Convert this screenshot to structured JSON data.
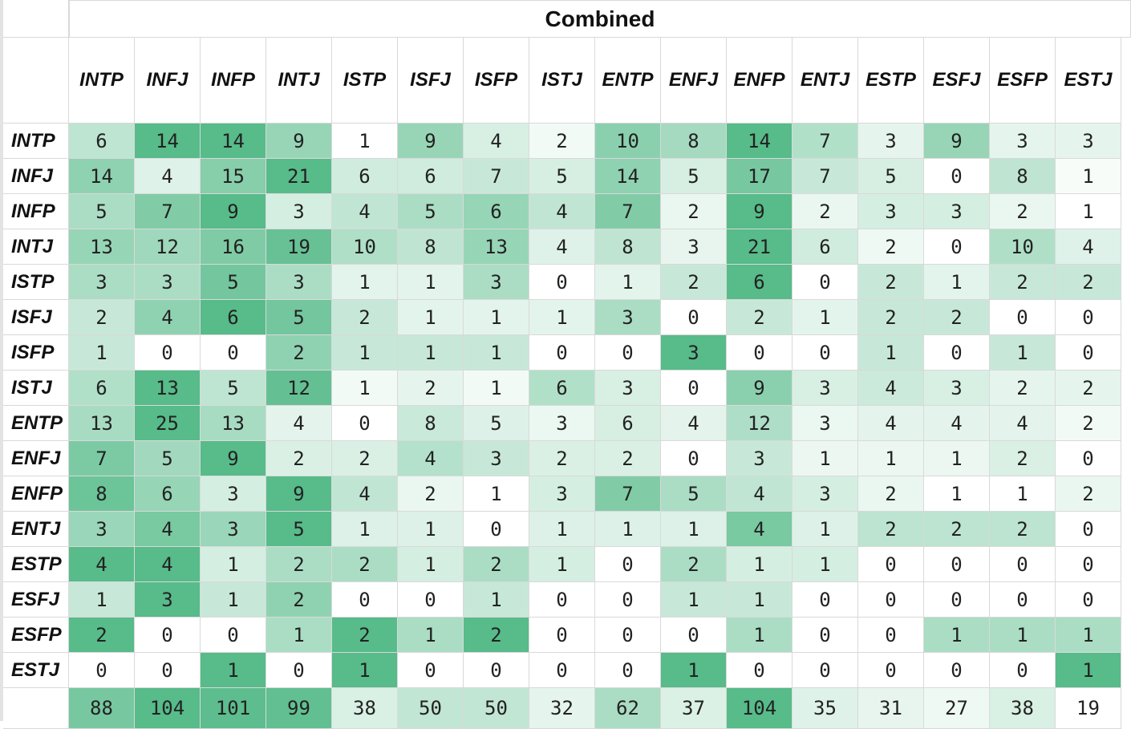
{
  "chart_data": {
    "type": "heatmap",
    "title": "Combined",
    "columns": [
      "INTP",
      "INFJ",
      "INFP",
      "INTJ",
      "ISTP",
      "ISFJ",
      "ISFP",
      "ISTJ",
      "ENTP",
      "ENFJ",
      "ENFP",
      "ENTJ",
      "ESTP",
      "ESFJ",
      "ESFP",
      "ESTJ"
    ],
    "rows": [
      "INTP",
      "INFJ",
      "INFP",
      "INTJ",
      "ISTP",
      "ISFJ",
      "ISFP",
      "ISTJ",
      "ENTP",
      "ENFJ",
      "ENFP",
      "ENTJ",
      "ESTP",
      "ESFJ",
      "ESFP",
      "ESTJ"
    ],
    "values": [
      [
        6,
        14,
        14,
        9,
        1,
        9,
        4,
        2,
        10,
        8,
        14,
        7,
        3,
        9,
        3,
        3
      ],
      [
        14,
        4,
        15,
        21,
        6,
        6,
        7,
        5,
        14,
        5,
        17,
        7,
        5,
        0,
        8,
        1
      ],
      [
        5,
        7,
        9,
        3,
        4,
        5,
        6,
        4,
        7,
        2,
        9,
        2,
        3,
        3,
        2,
        1
      ],
      [
        13,
        12,
        16,
        19,
        10,
        8,
        13,
        4,
        8,
        3,
        21,
        6,
        2,
        0,
        10,
        4
      ],
      [
        3,
        3,
        5,
        3,
        1,
        1,
        3,
        0,
        1,
        2,
        6,
        0,
        2,
        1,
        2,
        2
      ],
      [
        2,
        4,
        6,
        5,
        2,
        1,
        1,
        1,
        3,
        0,
        2,
        1,
        2,
        2,
        0,
        0
      ],
      [
        1,
        0,
        0,
        2,
        1,
        1,
        1,
        0,
        0,
        3,
        0,
        0,
        1,
        0,
        1,
        0
      ],
      [
        6,
        13,
        5,
        12,
        1,
        2,
        1,
        6,
        3,
        0,
        9,
        3,
        4,
        3,
        2,
        2
      ],
      [
        13,
        25,
        13,
        4,
        0,
        8,
        5,
        3,
        6,
        4,
        12,
        3,
        4,
        4,
        4,
        2
      ],
      [
        7,
        5,
        9,
        2,
        2,
        4,
        3,
        2,
        2,
        0,
        3,
        1,
        1,
        1,
        2,
        0
      ],
      [
        8,
        6,
        3,
        9,
        4,
        2,
        1,
        3,
        7,
        5,
        4,
        3,
        2,
        1,
        1,
        2
      ],
      [
        3,
        4,
        3,
        5,
        1,
        1,
        0,
        1,
        1,
        1,
        4,
        1,
        2,
        2,
        2,
        0
      ],
      [
        4,
        4,
        1,
        2,
        2,
        1,
        2,
        1,
        0,
        2,
        1,
        1,
        0,
        0,
        0,
        0
      ],
      [
        1,
        3,
        1,
        2,
        0,
        0,
        1,
        0,
        0,
        1,
        1,
        0,
        0,
        0,
        0,
        0
      ],
      [
        2,
        0,
        0,
        1,
        2,
        1,
        2,
        0,
        0,
        0,
        1,
        0,
        0,
        1,
        1,
        1
      ],
      [
        0,
        0,
        1,
        0,
        1,
        0,
        0,
        0,
        0,
        1,
        0,
        0,
        0,
        0,
        0,
        1
      ]
    ],
    "totals": [
      88,
      104,
      101,
      99,
      38,
      50,
      50,
      32,
      62,
      37,
      104,
      35,
      31,
      27,
      38,
      19
    ],
    "color_scale": {
      "low": "#ffffff",
      "high": "#57bb8a",
      "scope": "per-row"
    },
    "totals_color_scale": {
      "low": "#ffffff",
      "high": "#57bb8a",
      "min": 19,
      "max": 104
    }
  }
}
